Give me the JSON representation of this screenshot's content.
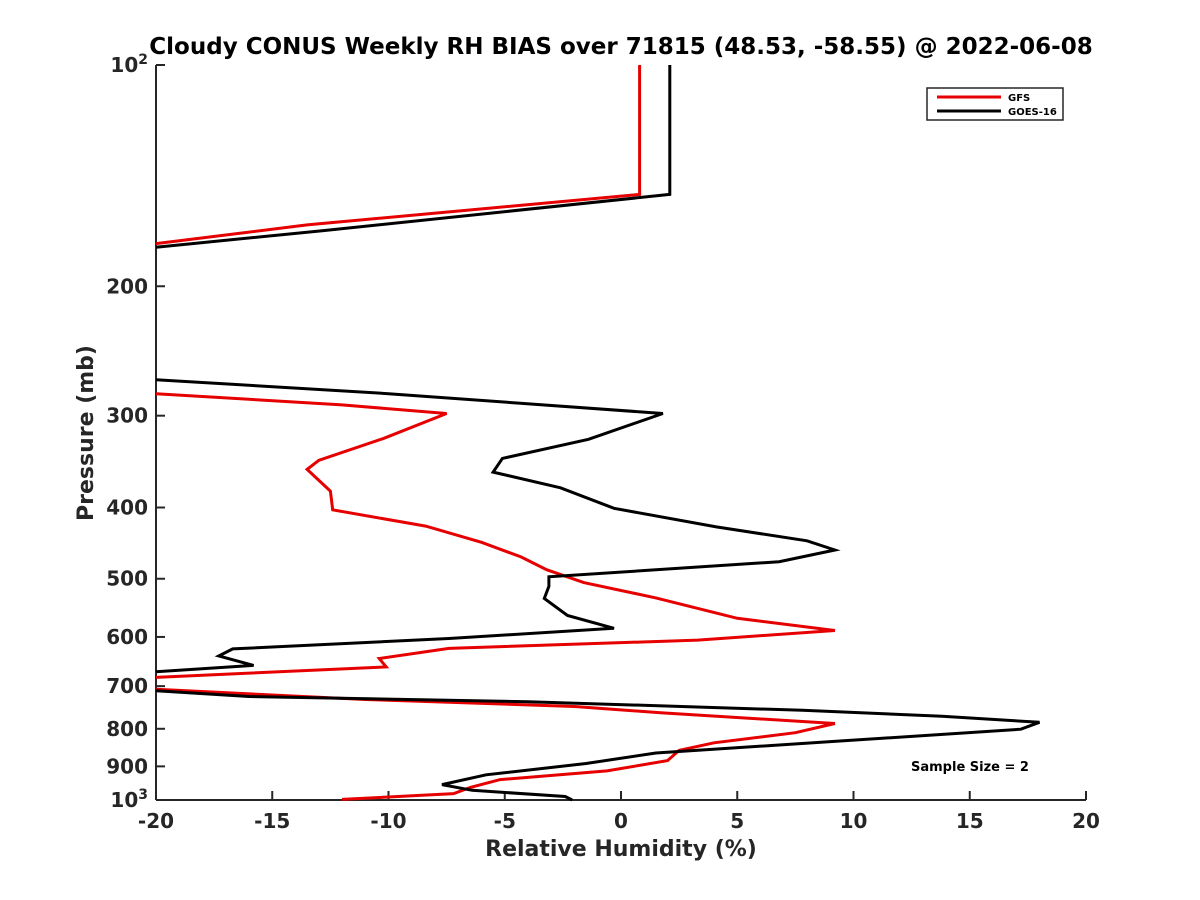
{
  "chart_data": {
    "type": "line",
    "title": "Cloudy CONUS Weekly RH BIAS over 71815 (48.53, -58.55) @ 2022-06-08",
    "xlabel": "Relative Humidity (%)",
    "ylabel": "Pressure (mb)",
    "xlim": [
      -20,
      20
    ],
    "ylim": [
      100,
      1000
    ],
    "yscale": "log",
    "y_inverted": true,
    "x_ticks": [
      "-20",
      "-15",
      "-10",
      "-5",
      "0",
      "5",
      "10",
      "15",
      "20"
    ],
    "y_ticks": [
      {
        "value": 100,
        "base": "10",
        "exp": "2"
      },
      {
        "value": 200,
        "label": "200"
      },
      {
        "value": 300,
        "label": "300"
      },
      {
        "value": 400,
        "label": "400"
      },
      {
        "value": 500,
        "label": "500"
      },
      {
        "value": 600,
        "label": "600"
      },
      {
        "value": 700,
        "label": "700"
      },
      {
        "value": 800,
        "label": "800"
      },
      {
        "value": 900,
        "label": "900"
      },
      {
        "value": 1000,
        "base": "10",
        "exp": "3"
      }
    ],
    "grid": false,
    "legend_position": "top-right",
    "annotation": "Sample Size = 2",
    "series": [
      {
        "name": "GFS",
        "color": "#e60000",
        "segments": [
          [
            [
              0.8,
              100
            ],
            [
              0.8,
              125
            ],
            [
              0.8,
              150
            ],
            [
              -13.5,
              165
            ],
            [
              -20,
              175
            ]
          ],
          [
            [
              -20,
              280
            ],
            [
              -12,
              290
            ],
            [
              -7.5,
              298
            ],
            [
              -10.2,
              322
            ],
            [
              -13,
              345
            ],
            [
              -13.5,
              355
            ],
            [
              -12.5,
              380
            ],
            [
              -12.4,
              403
            ],
            [
              -8.4,
              424
            ],
            [
              -6,
              446
            ],
            [
              -4.3,
              467
            ],
            [
              -3.2,
              486
            ],
            [
              -1.6,
              506
            ],
            [
              1.5,
              531
            ],
            [
              5,
              566
            ],
            [
              9.2,
              588
            ],
            [
              3.3,
              606
            ],
            [
              -7.4,
              622
            ],
            [
              -10.4,
              642
            ],
            [
              -10.1,
              659
            ],
            [
              -20,
              681
            ]
          ],
          [
            [
              -20,
              707
            ],
            [
              -11,
              730
            ],
            [
              -2,
              746
            ],
            [
              1.7,
              761
            ],
            [
              9.2,
              787
            ],
            [
              7.5,
              810
            ],
            [
              4,
              836
            ],
            [
              2.5,
              856
            ],
            [
              2,
              884
            ],
            [
              -0.6,
              913
            ],
            [
              -5.2,
              938
            ],
            [
              -6.5,
              962
            ],
            [
              -7.2,
              980
            ],
            [
              -12,
              998
            ]
          ]
        ]
      },
      {
        "name": "GOES-16",
        "color": "#000000",
        "segments": [
          [
            [
              2.1,
              100
            ],
            [
              2.1,
              125
            ],
            [
              2.1,
              150
            ],
            [
              -12.8,
              168
            ],
            [
              -20,
              177
            ]
          ],
          [
            [
              -20,
              268
            ],
            [
              -10,
              280
            ],
            [
              1.8,
              298
            ],
            [
              -1.4,
              323
            ],
            [
              -5.1,
              343
            ],
            [
              -5.5,
              358
            ],
            [
              -2.6,
              376
            ],
            [
              -0.3,
              401
            ],
            [
              4.1,
              425
            ],
            [
              8,
              444
            ],
            [
              9.2,
              457
            ],
            [
              6.8,
              474
            ],
            [
              -3.1,
              497
            ],
            [
              -3.1,
              512
            ],
            [
              -3.3,
              532
            ],
            [
              -2.3,
              561
            ],
            [
              -0.3,
              584
            ],
            [
              -7.4,
              603
            ],
            [
              -16.7,
              623
            ],
            [
              -17.3,
              637
            ],
            [
              -15.8,
              656
            ],
            [
              -20,
              669
            ]
          ],
          [
            [
              -20,
              710
            ],
            [
              -16,
              723
            ],
            [
              -4,
              735
            ],
            [
              7.8,
              755
            ],
            [
              13.8,
              769
            ],
            [
              18,
              784
            ],
            [
              17.2,
              801
            ],
            [
              9.5,
              831
            ],
            [
              1.5,
              863
            ],
            [
              -1.5,
              892
            ],
            [
              -5.8,
              924
            ],
            [
              -7.7,
              953
            ],
            [
              -6.4,
              970
            ],
            [
              -2.4,
              989
            ],
            [
              -2.1,
              1000
            ]
          ]
        ]
      }
    ]
  }
}
